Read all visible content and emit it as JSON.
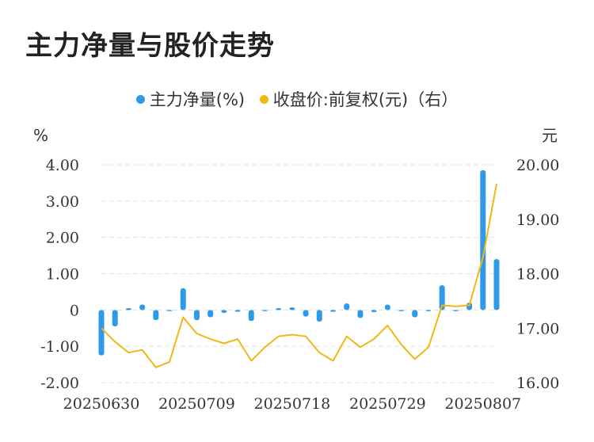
{
  "title": "主力净量与股价走势",
  "colors": {
    "bar": "#2f9be8",
    "line": "#f2b716",
    "grid": "#e3e3e3"
  },
  "chart_data": {
    "type": "bar+line",
    "legend": [
      {
        "name": "主力净量(%)",
        "color": "#2f9be8"
      },
      {
        "name": "收盘价:前复权(元)（右）",
        "color": "#f2b716"
      }
    ],
    "left_axis": {
      "unit": "%",
      "ylim": [
        -2,
        4
      ],
      "ticks": [
        "4.00",
        "3.00",
        "2.00",
        "1.00",
        "0",
        "-1.00",
        "-2.00"
      ]
    },
    "right_axis": {
      "unit": "元",
      "ylim": [
        16,
        20
      ],
      "ticks": [
        "20.00",
        "19.00",
        "18.00",
        "17.00",
        "16.00"
      ]
    },
    "x_tick_labels": [
      "20250630",
      "20250709",
      "20250718",
      "20250729",
      "20250807"
    ],
    "x_tick_index": [
      0,
      7,
      14,
      21,
      28
    ],
    "grid": true,
    "series": [
      {
        "name": "主力净量(%)",
        "type": "bar",
        "axis": "left",
        "values": [
          -1.25,
          -0.45,
          0.05,
          0.15,
          -0.28,
          -0.03,
          0.6,
          -0.28,
          -0.2,
          -0.08,
          -0.05,
          -0.3,
          -0.02,
          0.05,
          0.07,
          -0.18,
          -0.32,
          -0.05,
          0.18,
          -0.22,
          -0.06,
          0.15,
          0.0,
          -0.2,
          0.0,
          0.68,
          -0.02,
          0.2,
          3.85,
          1.4
        ]
      },
      {
        "name": "收盘价:前复权(元)",
        "type": "line",
        "axis": "right",
        "values": [
          17.0,
          16.75,
          16.55,
          16.6,
          16.28,
          16.38,
          17.2,
          16.9,
          16.8,
          16.72,
          16.8,
          16.4,
          16.65,
          16.85,
          16.88,
          16.85,
          16.55,
          16.4,
          16.85,
          16.65,
          16.8,
          17.05,
          16.7,
          16.43,
          16.65,
          17.42,
          17.4,
          17.42,
          18.3,
          19.65
        ]
      }
    ]
  }
}
